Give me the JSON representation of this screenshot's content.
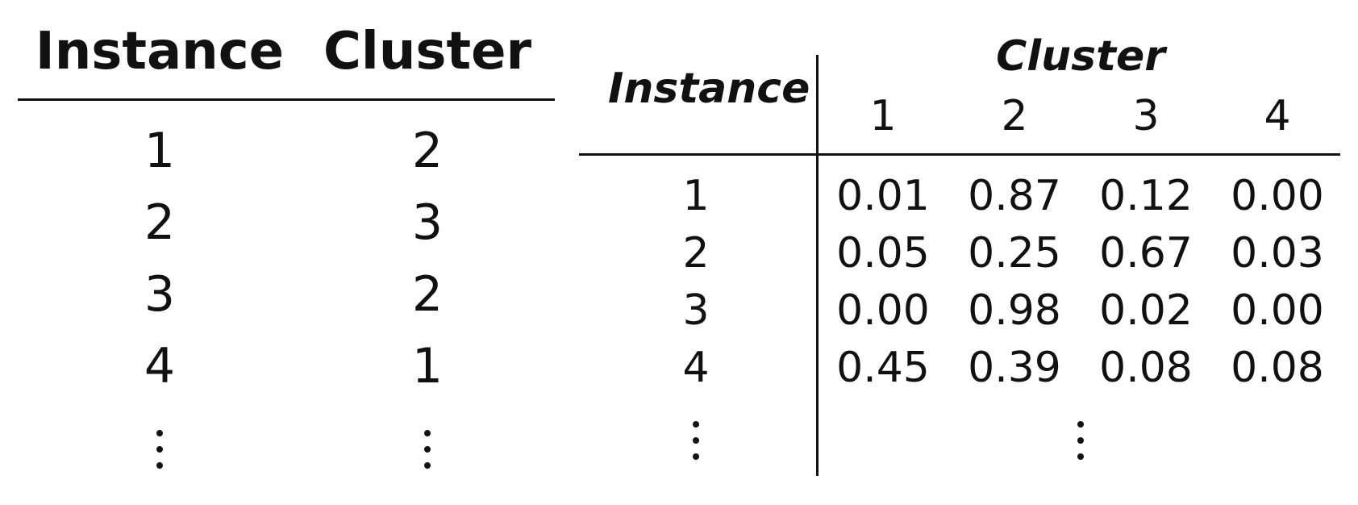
{
  "hard_table": {
    "headers": {
      "instance": "Instance",
      "cluster": "Cluster"
    },
    "rows": [
      {
        "instance": "1",
        "cluster": "2"
      },
      {
        "instance": "2",
        "cluster": "3"
      },
      {
        "instance": "3",
        "cluster": "2"
      },
      {
        "instance": "4",
        "cluster": "1"
      }
    ]
  },
  "soft_table": {
    "instance_header": "Instance",
    "cluster_header": "Cluster",
    "cluster_columns": [
      "1",
      "2",
      "3",
      "4"
    ],
    "rows": [
      {
        "instance": "1",
        "values": [
          "0.01",
          "0.87",
          "0.12",
          "0.00"
        ]
      },
      {
        "instance": "2",
        "values": [
          "0.05",
          "0.25",
          "0.67",
          "0.03"
        ]
      },
      {
        "instance": "3",
        "values": [
          "0.00",
          "0.98",
          "0.02",
          "0.00"
        ]
      },
      {
        "instance": "4",
        "values": [
          "0.45",
          "0.39",
          "0.08",
          "0.08"
        ]
      }
    ]
  }
}
